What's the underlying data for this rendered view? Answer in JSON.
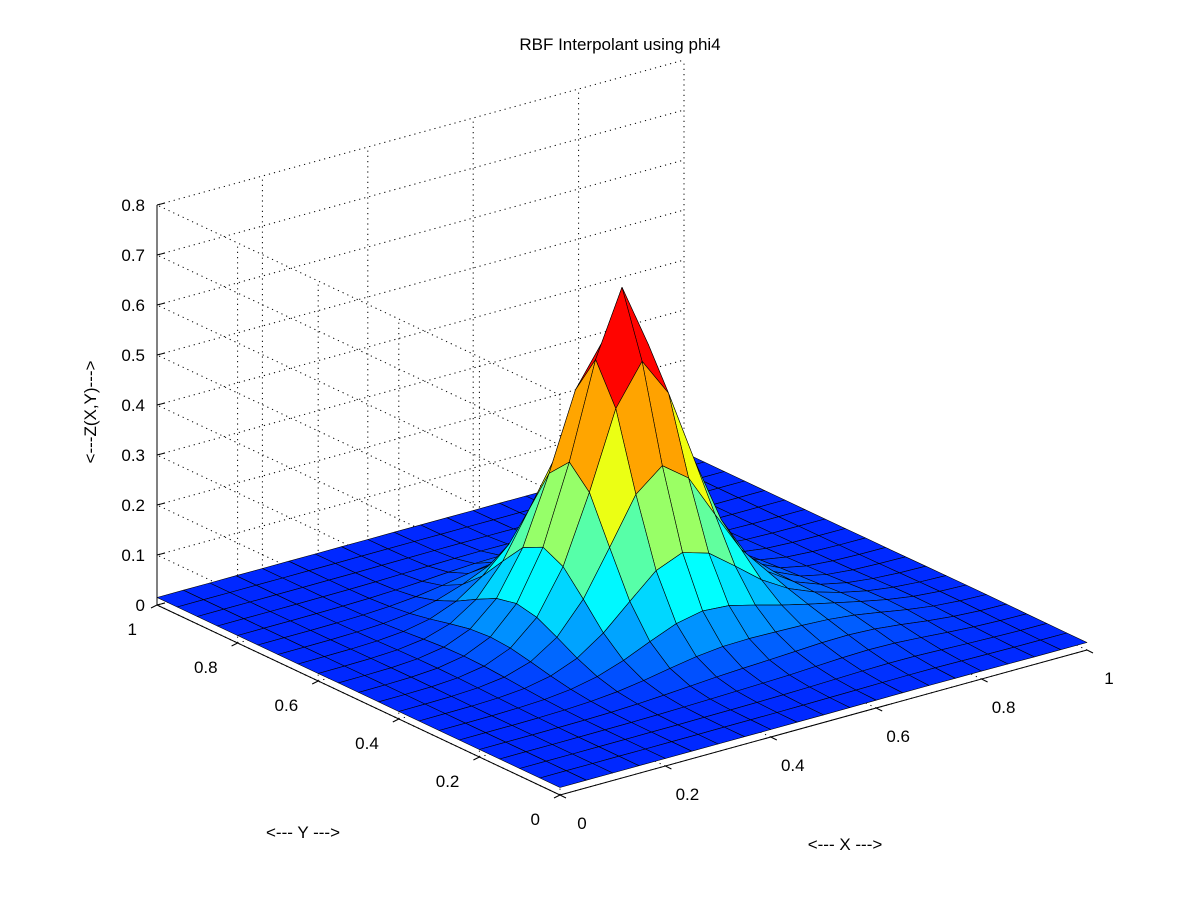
{
  "chart_data": {
    "type": "surface",
    "title": "RBF Interpolant using phi4",
    "xlabel": "<--- X --->",
    "ylabel": "<--- Y --->",
    "zlabel": "<---Z(X,Y)--->",
    "xlim": [
      0,
      1
    ],
    "ylim": [
      0,
      1
    ],
    "zlim": [
      0,
      0.8
    ],
    "x_ticks": [
      "0",
      "0.2",
      "0.4",
      "0.6",
      "0.8",
      "1"
    ],
    "y_ticks": [
      "0",
      "0.2",
      "0.4",
      "0.6",
      "0.8",
      "1"
    ],
    "z_ticks": [
      "0",
      "0.1",
      "0.2",
      "0.3",
      "0.4",
      "0.5",
      "0.6",
      "0.7",
      "0.8"
    ],
    "grid": true,
    "colormap": "jet",
    "grid_points_per_axis": 21,
    "surface": {
      "peak_center": [
        0.5,
        0.5
      ],
      "peak_value": 0.68,
      "base_value": 0.015
    }
  }
}
